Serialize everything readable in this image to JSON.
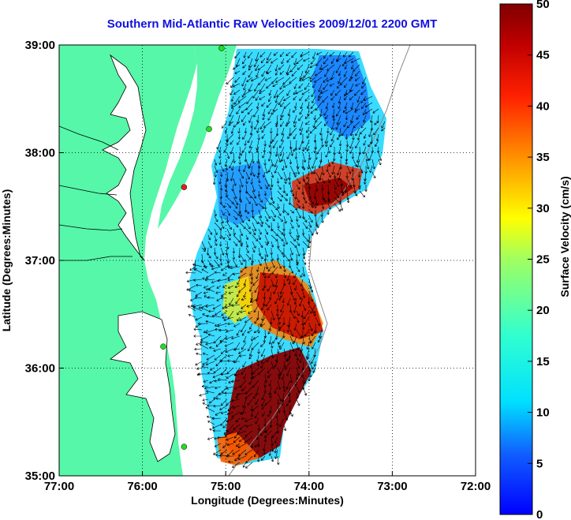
{
  "title": "Southern Mid-Atlantic Raw Velocities 2009/12/01 2200 GMT",
  "xlabel": "Longitude (Degrees:Minutes)",
  "ylabel": "Latitude (Degrees:Minutes)",
  "x_ticks": [
    "77:00",
    "76:00",
    "75:00",
    "74:00",
    "73:00",
    "72:00"
  ],
  "y_ticks": [
    "39:00",
    "38:00",
    "37:00",
    "36:00",
    "35:00"
  ],
  "colorbar": {
    "label": "Surface Velocity (cm/s)",
    "ticks": [
      "0",
      "5",
      "10",
      "15",
      "20",
      "25",
      "30",
      "35",
      "40",
      "45",
      "50"
    ],
    "range": [
      0,
      50
    ]
  },
  "colors": {
    "title": "#1010e0",
    "land": "#56f7a8",
    "water": "#ffffff",
    "vectors": "#000000",
    "station_green": "#22dd22",
    "station_red": "#e02020"
  },
  "map_extent": {
    "lon": [
      -77,
      -72
    ],
    "lat": [
      35,
      39
    ]
  },
  "stations": [
    {
      "lon": -75.05,
      "lat": 38.97,
      "status": "green"
    },
    {
      "lon": -75.2,
      "lat": 38.22,
      "status": "green"
    },
    {
      "lon": -75.5,
      "lat": 37.68,
      "status": "red"
    },
    {
      "lon": -75.75,
      "lat": 36.2,
      "status": "green"
    },
    {
      "lon": -75.5,
      "lat": 35.27,
      "status": "green"
    }
  ]
}
